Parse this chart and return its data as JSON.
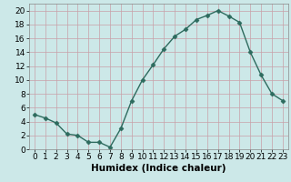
{
  "x": [
    0,
    1,
    2,
    3,
    4,
    5,
    6,
    7,
    8,
    9,
    10,
    11,
    12,
    13,
    14,
    15,
    16,
    17,
    18,
    19,
    20,
    21,
    22,
    23
  ],
  "y": [
    5,
    4.5,
    3.8,
    2.2,
    2.0,
    1.0,
    1.0,
    0.3,
    3.0,
    7.0,
    10.0,
    12.2,
    14.5,
    16.3,
    17.3,
    18.7,
    19.3,
    20.0,
    19.2,
    18.3,
    14.0,
    10.7,
    8.0,
    7.0
  ],
  "line_color": "#2d6b5e",
  "marker": "D",
  "markersize": 2.5,
  "linewidth": 1.0,
  "bg_color": "#cce8e8",
  "grid_color": "#c8a0a8",
  "xlabel": "Humidex (Indice chaleur)",
  "xlim": [
    -0.5,
    23.5
  ],
  "ylim": [
    0,
    21
  ],
  "yticks": [
    0,
    2,
    4,
    6,
    8,
    10,
    12,
    14,
    16,
    18,
    20
  ],
  "xticks": [
    0,
    1,
    2,
    3,
    4,
    5,
    6,
    7,
    8,
    9,
    10,
    11,
    12,
    13,
    14,
    15,
    16,
    17,
    18,
    19,
    20,
    21,
    22,
    23
  ],
  "xlabel_fontsize": 7.5,
  "tick_fontsize": 6.5
}
